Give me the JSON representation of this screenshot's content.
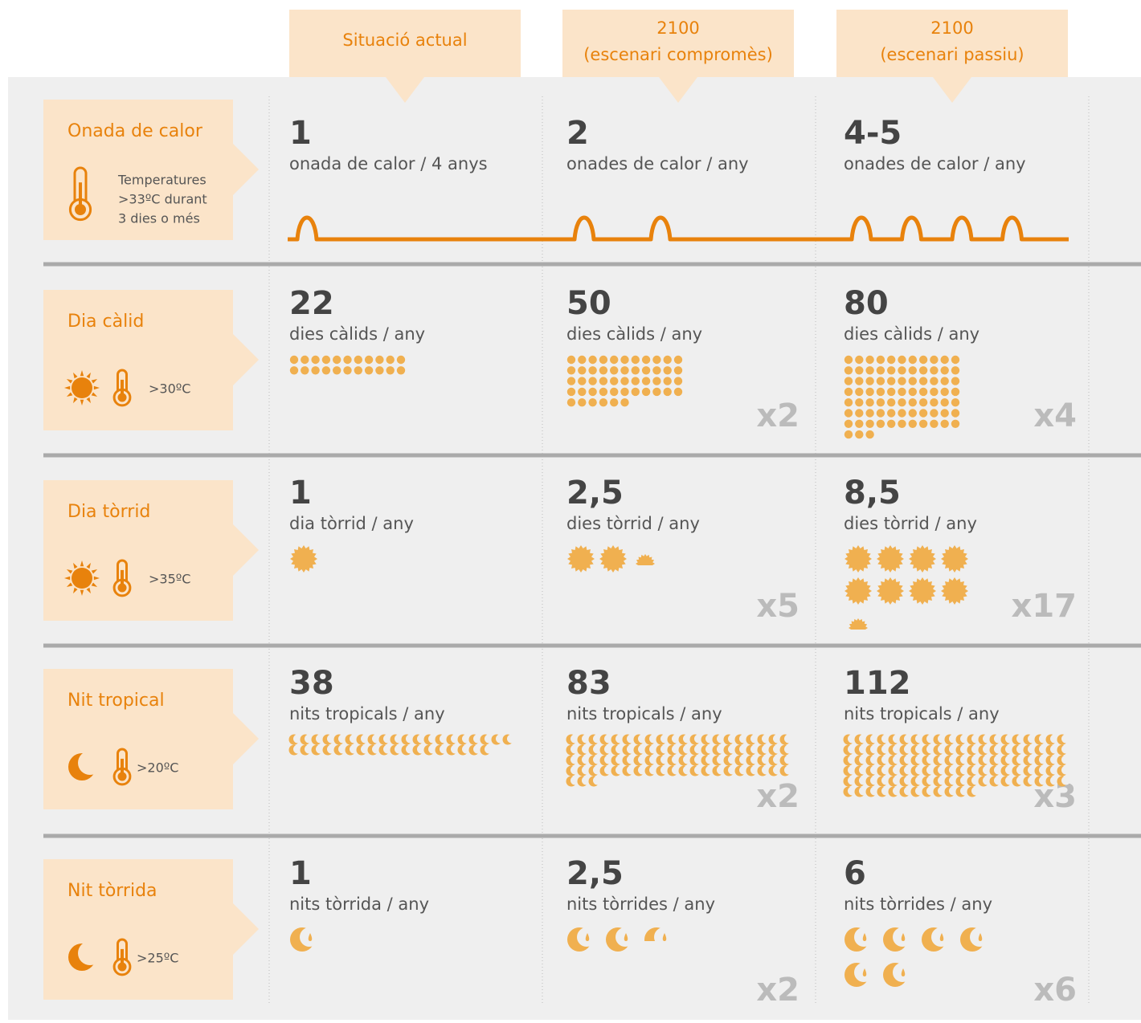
{
  "headers": [
    {
      "lines": [
        "Situació actual"
      ]
    },
    {
      "lines": [
        "2100",
        "(escenari compromès)"
      ]
    },
    {
      "lines": [
        "2100",
        "(escenari passiu)"
      ]
    }
  ],
  "rows": [
    {
      "label": "Onada de calor",
      "icon": "wave",
      "note": [
        "Temperatures",
        ">33ºC durant",
        "3 dies o més"
      ],
      "cells": [
        {
          "value": 1,
          "unit": "onada de calor / 4 anys"
        },
        {
          "value": 2,
          "unit": "onades de calor / any"
        },
        {
          "value": "4-5",
          "unit": "onades de calor / any"
        }
      ]
    },
    {
      "label": "Dia càlid",
      "icon": "dot",
      "note": [
        ">30ºC"
      ],
      "cells": [
        {
          "value": 22,
          "unit": "dies càlids / any"
        },
        {
          "value": 50,
          "unit": "dies càlids / any",
          "multiplier": "x2"
        },
        {
          "value": 80,
          "unit": "dies càlids / any",
          "multiplier": "x4"
        }
      ]
    },
    {
      "label": "Dia tòrrid",
      "icon": "sun",
      "note": [
        ">35ºC"
      ],
      "cells": [
        {
          "value": 1,
          "unit": "dia tòrrid / any"
        },
        {
          "value": "2,5",
          "unit": "dies tòrrid / any",
          "multiplier": "x5"
        },
        {
          "value": "8,5",
          "unit": "dies tòrrid / any",
          "multiplier": "x17"
        }
      ]
    },
    {
      "label": "Nit tropical",
      "icon": "crescent",
      "note": [
        ">20ºC"
      ],
      "cells": [
        {
          "value": 38,
          "unit": "nits tropicals / any"
        },
        {
          "value": 83,
          "unit": "nits tropicals / any",
          "multiplier": "x2"
        },
        {
          "value": 112,
          "unit": "nits tropicals / any",
          "multiplier": "x3"
        }
      ]
    },
    {
      "label": "Nit tòrrida",
      "icon": "moon",
      "note": [
        ">25ºC"
      ],
      "cells": [
        {
          "value": 1,
          "unit": "nits tòrrida / any"
        },
        {
          "value": "2,5",
          "unit": "nits tòrrides / any",
          "multiplier": "x2"
        },
        {
          "value": 6,
          "unit": "nits tòrrides / any",
          "multiplier": "x6"
        }
      ]
    }
  ]
}
